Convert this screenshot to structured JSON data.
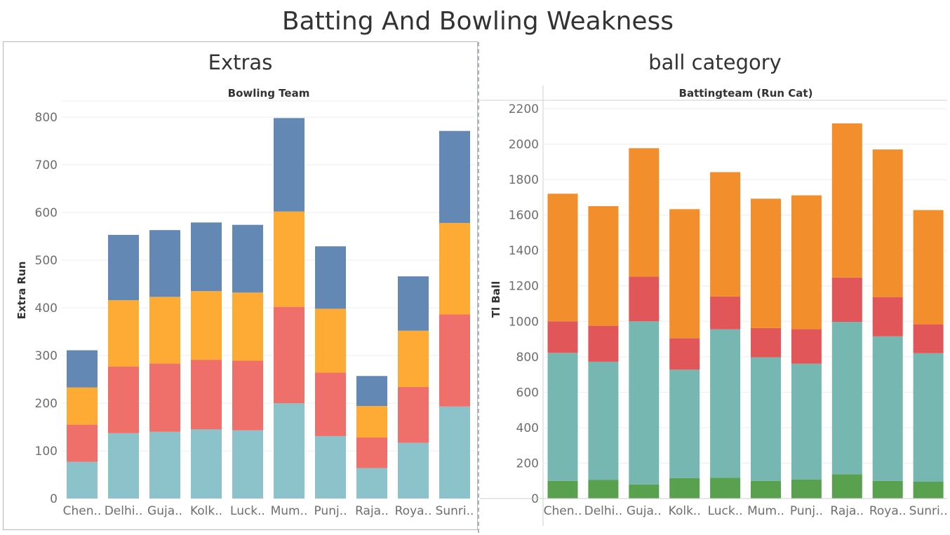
{
  "dashboard": {
    "title": "Batting And Bowling Weakness"
  },
  "chart_data": [
    {
      "type": "bar",
      "stacked": true,
      "title": "Extras",
      "header": "Bowling Team",
      "xlabel": "",
      "ylabel": "Extra Run",
      "ylim": [
        0,
        830
      ],
      "yticks": [
        0,
        100,
        200,
        300,
        400,
        500,
        600,
        700,
        800
      ],
      "grid": true,
      "categories": [
        "Chen..",
        "Delhi..",
        "Guja..",
        "Kolk..",
        "Luck..",
        "Mum..",
        "Punj..",
        "Raja..",
        "Roya..",
        "Sunri.."
      ],
      "series": [
        {
          "color": "#8cc2ca",
          "values": [
            77,
            137,
            140,
            145,
            143,
            200,
            131,
            64,
            117,
            193
          ]
        },
        {
          "color": "#ef6f6a",
          "values": [
            78,
            140,
            143,
            146,
            146,
            202,
            133,
            64,
            117,
            193
          ]
        },
        {
          "color": "#fdab35",
          "values": [
            78,
            139,
            140,
            144,
            143,
            200,
            134,
            66,
            118,
            192
          ]
        },
        {
          "color": "#6388b4",
          "values": [
            78,
            137,
            140,
            144,
            142,
            196,
            131,
            63,
            114,
            193
          ]
        }
      ]
    },
    {
      "type": "bar",
      "stacked": true,
      "title": "ball category",
      "header": "Battingteam (Run Cat)",
      "xlabel": "",
      "ylabel": "Tl Ball",
      "ylim": [
        0,
        2230
      ],
      "yticks": [
        0,
        200,
        400,
        600,
        800,
        1000,
        1200,
        1400,
        1600,
        1800,
        2000,
        2200
      ],
      "grid": true,
      "categories": [
        "Chen..",
        "Delhi..",
        "Guja..",
        "Kolk..",
        "Luck..",
        "Mum..",
        "Punj..",
        "Raja..",
        "Roya..",
        "Sunri.."
      ],
      "series": [
        {
          "color": "#59a14f",
          "values": [
            100,
            105,
            80,
            115,
            118,
            100,
            108,
            137,
            100,
            95
          ]
        },
        {
          "color": "#76b7b2",
          "values": [
            722,
            667,
            920,
            612,
            837,
            697,
            653,
            860,
            815,
            725
          ]
        },
        {
          "color": "#e15759",
          "values": [
            178,
            203,
            252,
            178,
            185,
            165,
            195,
            250,
            222,
            163
          ]
        },
        {
          "color": "#f28e2b",
          "values": [
            720,
            675,
            725,
            728,
            702,
            730,
            755,
            870,
            833,
            645
          ]
        }
      ]
    }
  ]
}
